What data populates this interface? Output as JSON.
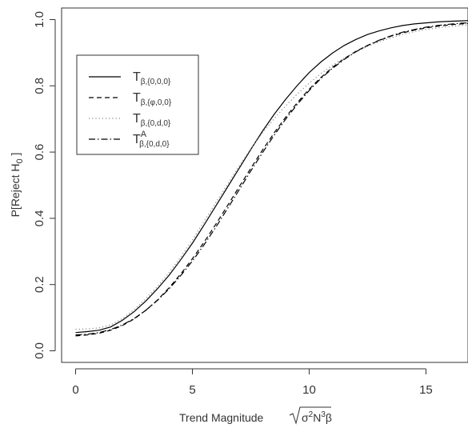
{
  "chart_data": {
    "type": "line",
    "xlabel": {
      "prefix": "Trend Magnitude ",
      "radicand_a": "σ",
      "radicand_b": "2",
      "radicand_c": "N",
      "radicand_d": "3",
      "suffix": "β"
    },
    "ylabel": {
      "main": "P[Reject H",
      "sub": "0",
      "close": " ]"
    },
    "xlim": [
      -0.6,
      16.8
    ],
    "ylim": [
      -0.035,
      1.035
    ],
    "xticks": [
      0,
      5,
      10,
      15
    ],
    "xtick_labels": [
      "0",
      "5",
      "10",
      "15"
    ],
    "yticks": [
      0.0,
      0.2,
      0.4,
      0.6,
      0.8,
      1.0
    ],
    "ytick_labels": [
      "0.0",
      "0.2",
      "0.4",
      "0.6",
      "0.8",
      "1.0"
    ],
    "grid": false,
    "legend_position": "upper-left",
    "x": [
      0,
      0.5,
      1,
      1.5,
      2,
      2.5,
      3,
      3.5,
      4,
      4.5,
      5,
      5.5,
      6,
      6.5,
      7,
      7.5,
      8,
      8.5,
      9,
      9.5,
      10,
      10.5,
      11,
      11.5,
      12,
      12.5,
      13,
      13.5,
      14,
      14.5,
      15,
      15.5,
      16,
      16.5,
      16.8
    ],
    "series": [
      {
        "name": "T_β,{0,0,0}",
        "label": {
          "base": "T",
          "sup": "",
          "sub": "β,{0,0,0}"
        },
        "dash": "solid",
        "color": "#000000",
        "values": [
          0.055,
          0.058,
          0.062,
          0.072,
          0.092,
          0.118,
          0.15,
          0.187,
          0.228,
          0.275,
          0.325,
          0.38,
          0.437,
          0.494,
          0.551,
          0.608,
          0.663,
          0.714,
          0.76,
          0.802,
          0.84,
          0.872,
          0.899,
          0.922,
          0.94,
          0.955,
          0.966,
          0.975,
          0.982,
          0.987,
          0.99,
          0.993,
          0.995,
          0.996,
          0.997
        ]
      },
      {
        "name": "T_β,{φ,0,0}",
        "label": {
          "base": "T",
          "sup": "",
          "sub": "β,{φ,0,0}"
        },
        "dash": "dashed",
        "color": "#000000",
        "values": [
          0.045,
          0.048,
          0.053,
          0.062,
          0.076,
          0.096,
          0.122,
          0.153,
          0.19,
          0.232,
          0.278,
          0.328,
          0.382,
          0.438,
          0.495,
          0.551,
          0.606,
          0.658,
          0.706,
          0.75,
          0.79,
          0.825,
          0.856,
          0.882,
          0.904,
          0.922,
          0.937,
          0.95,
          0.96,
          0.968,
          0.975,
          0.98,
          0.984,
          0.987,
          0.988
        ]
      },
      {
        "name": "T_β,{0,d,0}",
        "label": {
          "base": "T",
          "sup": "",
          "sub": "β,{0,d,0}"
        },
        "dash": "dotted",
        "color": "#888888",
        "values": [
          0.065,
          0.066,
          0.069,
          0.078,
          0.097,
          0.124,
          0.157,
          0.194,
          0.236,
          0.283,
          0.335,
          0.391,
          0.447,
          0.503,
          0.558,
          0.61,
          0.658,
          0.701,
          0.74,
          0.776,
          0.808,
          0.837,
          0.862,
          0.884,
          0.903,
          0.919,
          0.933,
          0.945,
          0.955,
          0.963,
          0.97,
          0.975,
          0.979,
          0.982,
          0.984
        ]
      },
      {
        "name": "T^A_β,{0,d,0}",
        "label": {
          "base": "T",
          "sup": "A",
          "sub": "β,{0,d,0}"
        },
        "dash": "dashdot",
        "color": "#000000",
        "values": [
          0.048,
          0.05,
          0.055,
          0.064,
          0.078,
          0.097,
          0.122,
          0.152,
          0.187,
          0.227,
          0.271,
          0.32,
          0.373,
          0.429,
          0.486,
          0.543,
          0.598,
          0.651,
          0.7,
          0.745,
          0.786,
          0.822,
          0.853,
          0.88,
          0.903,
          0.922,
          0.938,
          0.951,
          0.962,
          0.97,
          0.977,
          0.982,
          0.986,
          0.989,
          0.99
        ]
      }
    ]
  }
}
